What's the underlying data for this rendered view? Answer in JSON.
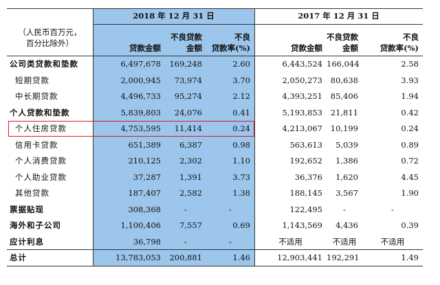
{
  "header": {
    "year_2018": "2018 年 12 月 31 日",
    "year_2017": "2017 年 12 月 31 日",
    "unit_label": [
      "（人民币百万元，",
      "百分比除外）"
    ],
    "columns": [
      [
        "贷款金额"
      ],
      [
        "不良贷款",
        "金额"
      ],
      [
        "不良",
        "贷款率(%)"
      ]
    ]
  },
  "table": {
    "rows": [
      {
        "label": "公司类贷款和垫款",
        "bold": true,
        "values": [
          "6,497,678",
          "169,248",
          "2.60",
          "6,443,524",
          "166,044",
          "2.58"
        ]
      },
      {
        "label": "短期贷款",
        "values": [
          "2,000,945",
          "73,974",
          "3.70",
          "2,050,273",
          "80,638",
          "3.93"
        ]
      },
      {
        "label": "中长期贷款",
        "values": [
          "4,496,733",
          "95,274",
          "2.12",
          "4,393,251",
          "85,406",
          "1.94"
        ]
      },
      {
        "label": "个人贷款和垫款",
        "bold": true,
        "values": [
          "5,839,803",
          "24,076",
          "0.41",
          "5,193,853",
          "21,811",
          "0.42"
        ]
      },
      {
        "label": "个人住房贷款",
        "highlight": true,
        "values": [
          "4,753,595",
          "11,414",
          "0.24",
          "4,213,067",
          "10,199",
          "0.24"
        ]
      },
      {
        "label": "信用卡贷款",
        "values": [
          "651,389",
          "6,387",
          "0.98",
          "563,613",
          "5,039",
          "0.89"
        ]
      },
      {
        "label": "个人消费贷款",
        "values": [
          "210,125",
          "2,302",
          "1.10",
          "192,652",
          "1,386",
          "0.72"
        ]
      },
      {
        "label": "个人助业贷款",
        "values": [
          "37,287",
          "1,391",
          "3.73",
          "36,376",
          "1,620",
          "4.45"
        ]
      },
      {
        "label": "其他贷款",
        "values": [
          "187,407",
          "2,582",
          "1.38",
          "188,145",
          "3,567",
          "1.90"
        ]
      },
      {
        "label": "票据贴现",
        "bold": true,
        "values": [
          "308,368",
          "-",
          "-",
          "122,495",
          "-",
          "-"
        ]
      },
      {
        "label": "海外和子公司",
        "bold": true,
        "values": [
          "1,100,406",
          "7,557",
          "0.69",
          "1,143,569",
          "4,436",
          "0.39"
        ]
      },
      {
        "label": "应计利息",
        "bold": true,
        "values": [
          "36,798",
          "-",
          "-",
          "不适用",
          "不适用",
          "不适用"
        ]
      },
      {
        "label": "总计",
        "bold": true,
        "values": [
          "13,783,053",
          "200,881",
          "1.46",
          "12,903,441",
          "192,291",
          "1.49"
        ]
      }
    ]
  }
}
